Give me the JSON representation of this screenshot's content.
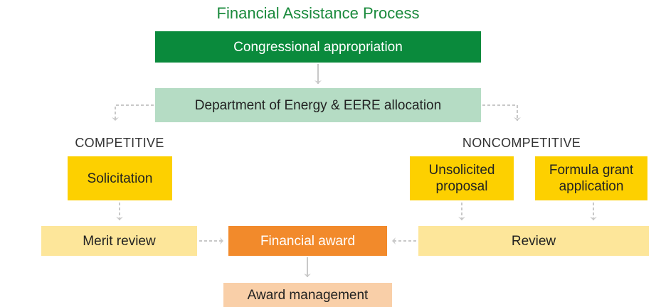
{
  "title": "Financial Assistance Process",
  "nodes": [
    {
      "label": "Congressional appropriation"
    },
    {
      "label": "Department of Energy & EERE allocation"
    },
    {
      "label": "Solicitation"
    },
    {
      "label": "Unsolicited proposal"
    },
    {
      "label": "Formula grant application"
    },
    {
      "label": "Merit review"
    },
    {
      "label": "Financial award"
    },
    {
      "label": "Review"
    },
    {
      "label": "Award management"
    }
  ],
  "branches": [
    "COMPETITIVE",
    "NONCOMPETITIVE"
  ]
}
